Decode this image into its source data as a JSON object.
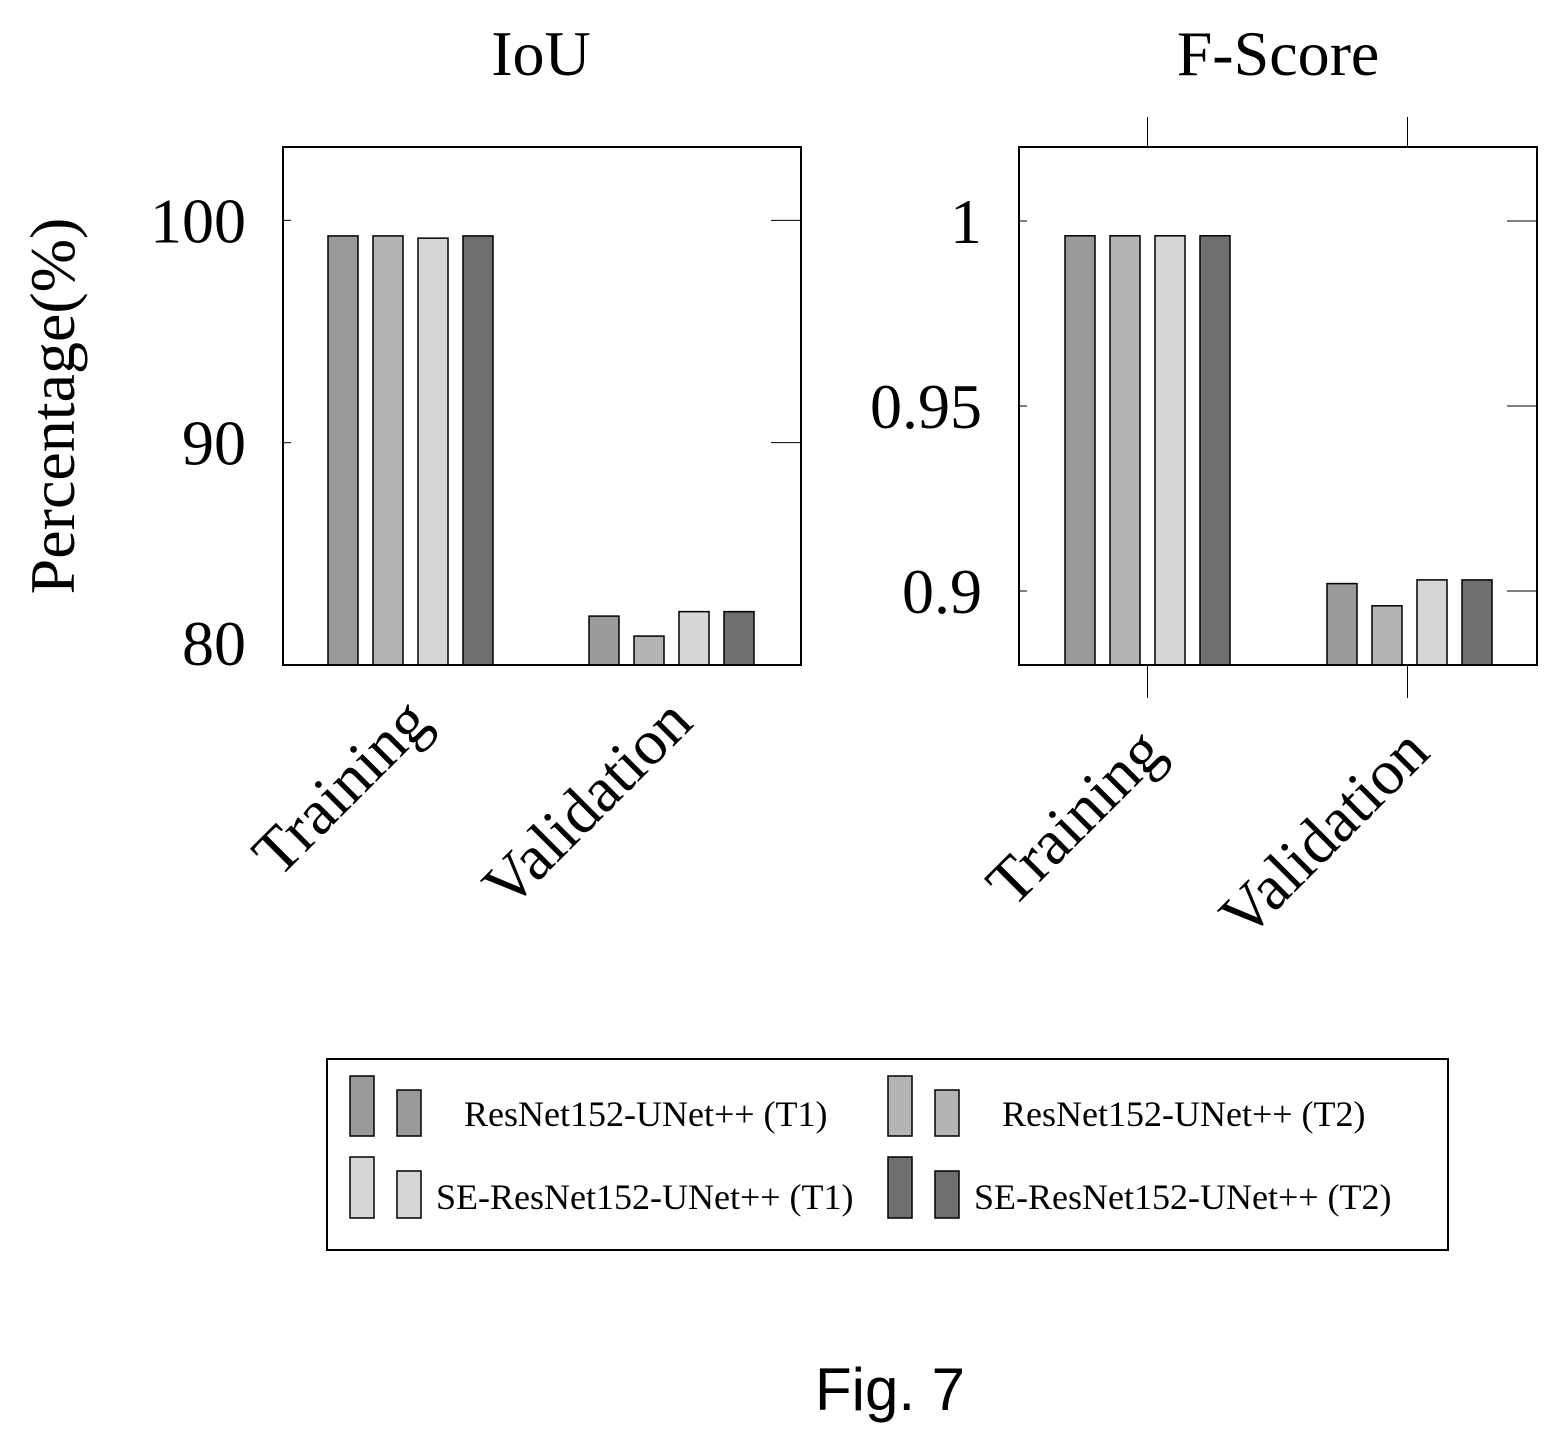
{
  "figure_caption": "Fig. 7",
  "colors": {
    "series_0": "#9a9a9a",
    "series_1": "#b4b4b4",
    "series_2": "#d6d6d6",
    "series_3": "#6e6e6e",
    "axis": "#000000"
  },
  "legend": {
    "entries": [
      "ResNet152-UNet++ (T1)",
      "ResNet152-UNet++ (T2)",
      "SE-ResNet152-UNet++ (T1)",
      "SE-ResNet152-UNet++ (T2)"
    ]
  },
  "chart_data": [
    {
      "type": "bar",
      "title": "IoU",
      "ylabel": "Percentage(%)",
      "xlabel": "",
      "categories": [
        "Training",
        "Validation"
      ],
      "ylim": [
        80,
        103.3
      ],
      "yticks": [
        80,
        90,
        100
      ],
      "ytick_labels": [
        "80",
        "90",
        "100"
      ],
      "series": [
        {
          "name": "ResNet152-UNet++ (T1)",
          "values": [
            99.3,
            82.2
          ]
        },
        {
          "name": "ResNet152-UNet++ (T2)",
          "values": [
            99.3,
            81.3
          ]
        },
        {
          "name": "SE-ResNet152-UNet++ (T1)",
          "values": [
            99.2,
            82.4
          ]
        },
        {
          "name": "SE-ResNet152-UNet++ (T2)",
          "values": [
            99.3,
            82.4
          ]
        }
      ]
    },
    {
      "type": "bar",
      "title": "F-Score",
      "ylabel": "",
      "xlabel": "",
      "categories": [
        "Training",
        "Validation"
      ],
      "ylim": [
        0.88,
        1.02
      ],
      "yticks": [
        0.9,
        0.95,
        1.0
      ],
      "ytick_labels": [
        "0.9",
        "0.95",
        "1"
      ],
      "series": [
        {
          "name": "ResNet152-UNet++ (T1)",
          "values": [
            0.996,
            0.902
          ]
        },
        {
          "name": "ResNet152-UNet++ (T2)",
          "values": [
            0.996,
            0.896
          ]
        },
        {
          "name": "SE-ResNet152-UNet++ (T1)",
          "values": [
            0.996,
            0.903
          ]
        },
        {
          "name": "SE-ResNet152-UNet++ (T2)",
          "values": [
            0.996,
            0.903
          ]
        }
      ]
    }
  ]
}
